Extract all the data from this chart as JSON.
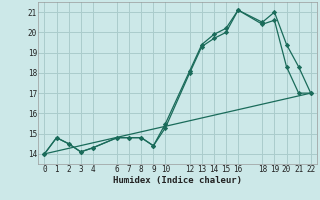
{
  "xlabel": "Humidex (Indice chaleur)",
  "bg_color": "#cce8e8",
  "grid_color": "#aacccc",
  "line_color": "#1a6b5a",
  "ylim": [
    13.5,
    21.5
  ],
  "xlim": [
    -0.5,
    22.5
  ],
  "yticks": [
    14,
    15,
    16,
    17,
    18,
    19,
    20,
    21
  ],
  "xticks": [
    0,
    1,
    2,
    3,
    4,
    6,
    7,
    8,
    9,
    10,
    12,
    13,
    14,
    15,
    16,
    18,
    19,
    20,
    21,
    22
  ],
  "line1_x": [
    0,
    1,
    2,
    3,
    4,
    6,
    7,
    8,
    9,
    10,
    12,
    13,
    14,
    15,
    16,
    18,
    19,
    20,
    21,
    22
  ],
  "line1_y": [
    14.0,
    14.8,
    14.5,
    14.1,
    14.3,
    14.8,
    14.8,
    14.8,
    14.4,
    15.5,
    18.1,
    19.4,
    19.9,
    20.2,
    21.1,
    20.4,
    20.6,
    18.3,
    17.0,
    17.0
  ],
  "line2_x": [
    0,
    1,
    2,
    3,
    4,
    6,
    7,
    8,
    9,
    10,
    12,
    13,
    14,
    15,
    16,
    18,
    19,
    20,
    21,
    22
  ],
  "line2_y": [
    14.0,
    14.8,
    14.5,
    14.1,
    14.3,
    14.8,
    14.8,
    14.8,
    14.4,
    15.3,
    18.0,
    19.3,
    19.7,
    20.0,
    21.1,
    20.5,
    21.0,
    19.4,
    18.3,
    17.0
  ],
  "line3_x": [
    0,
    22
  ],
  "line3_y": [
    14.0,
    17.0
  ]
}
